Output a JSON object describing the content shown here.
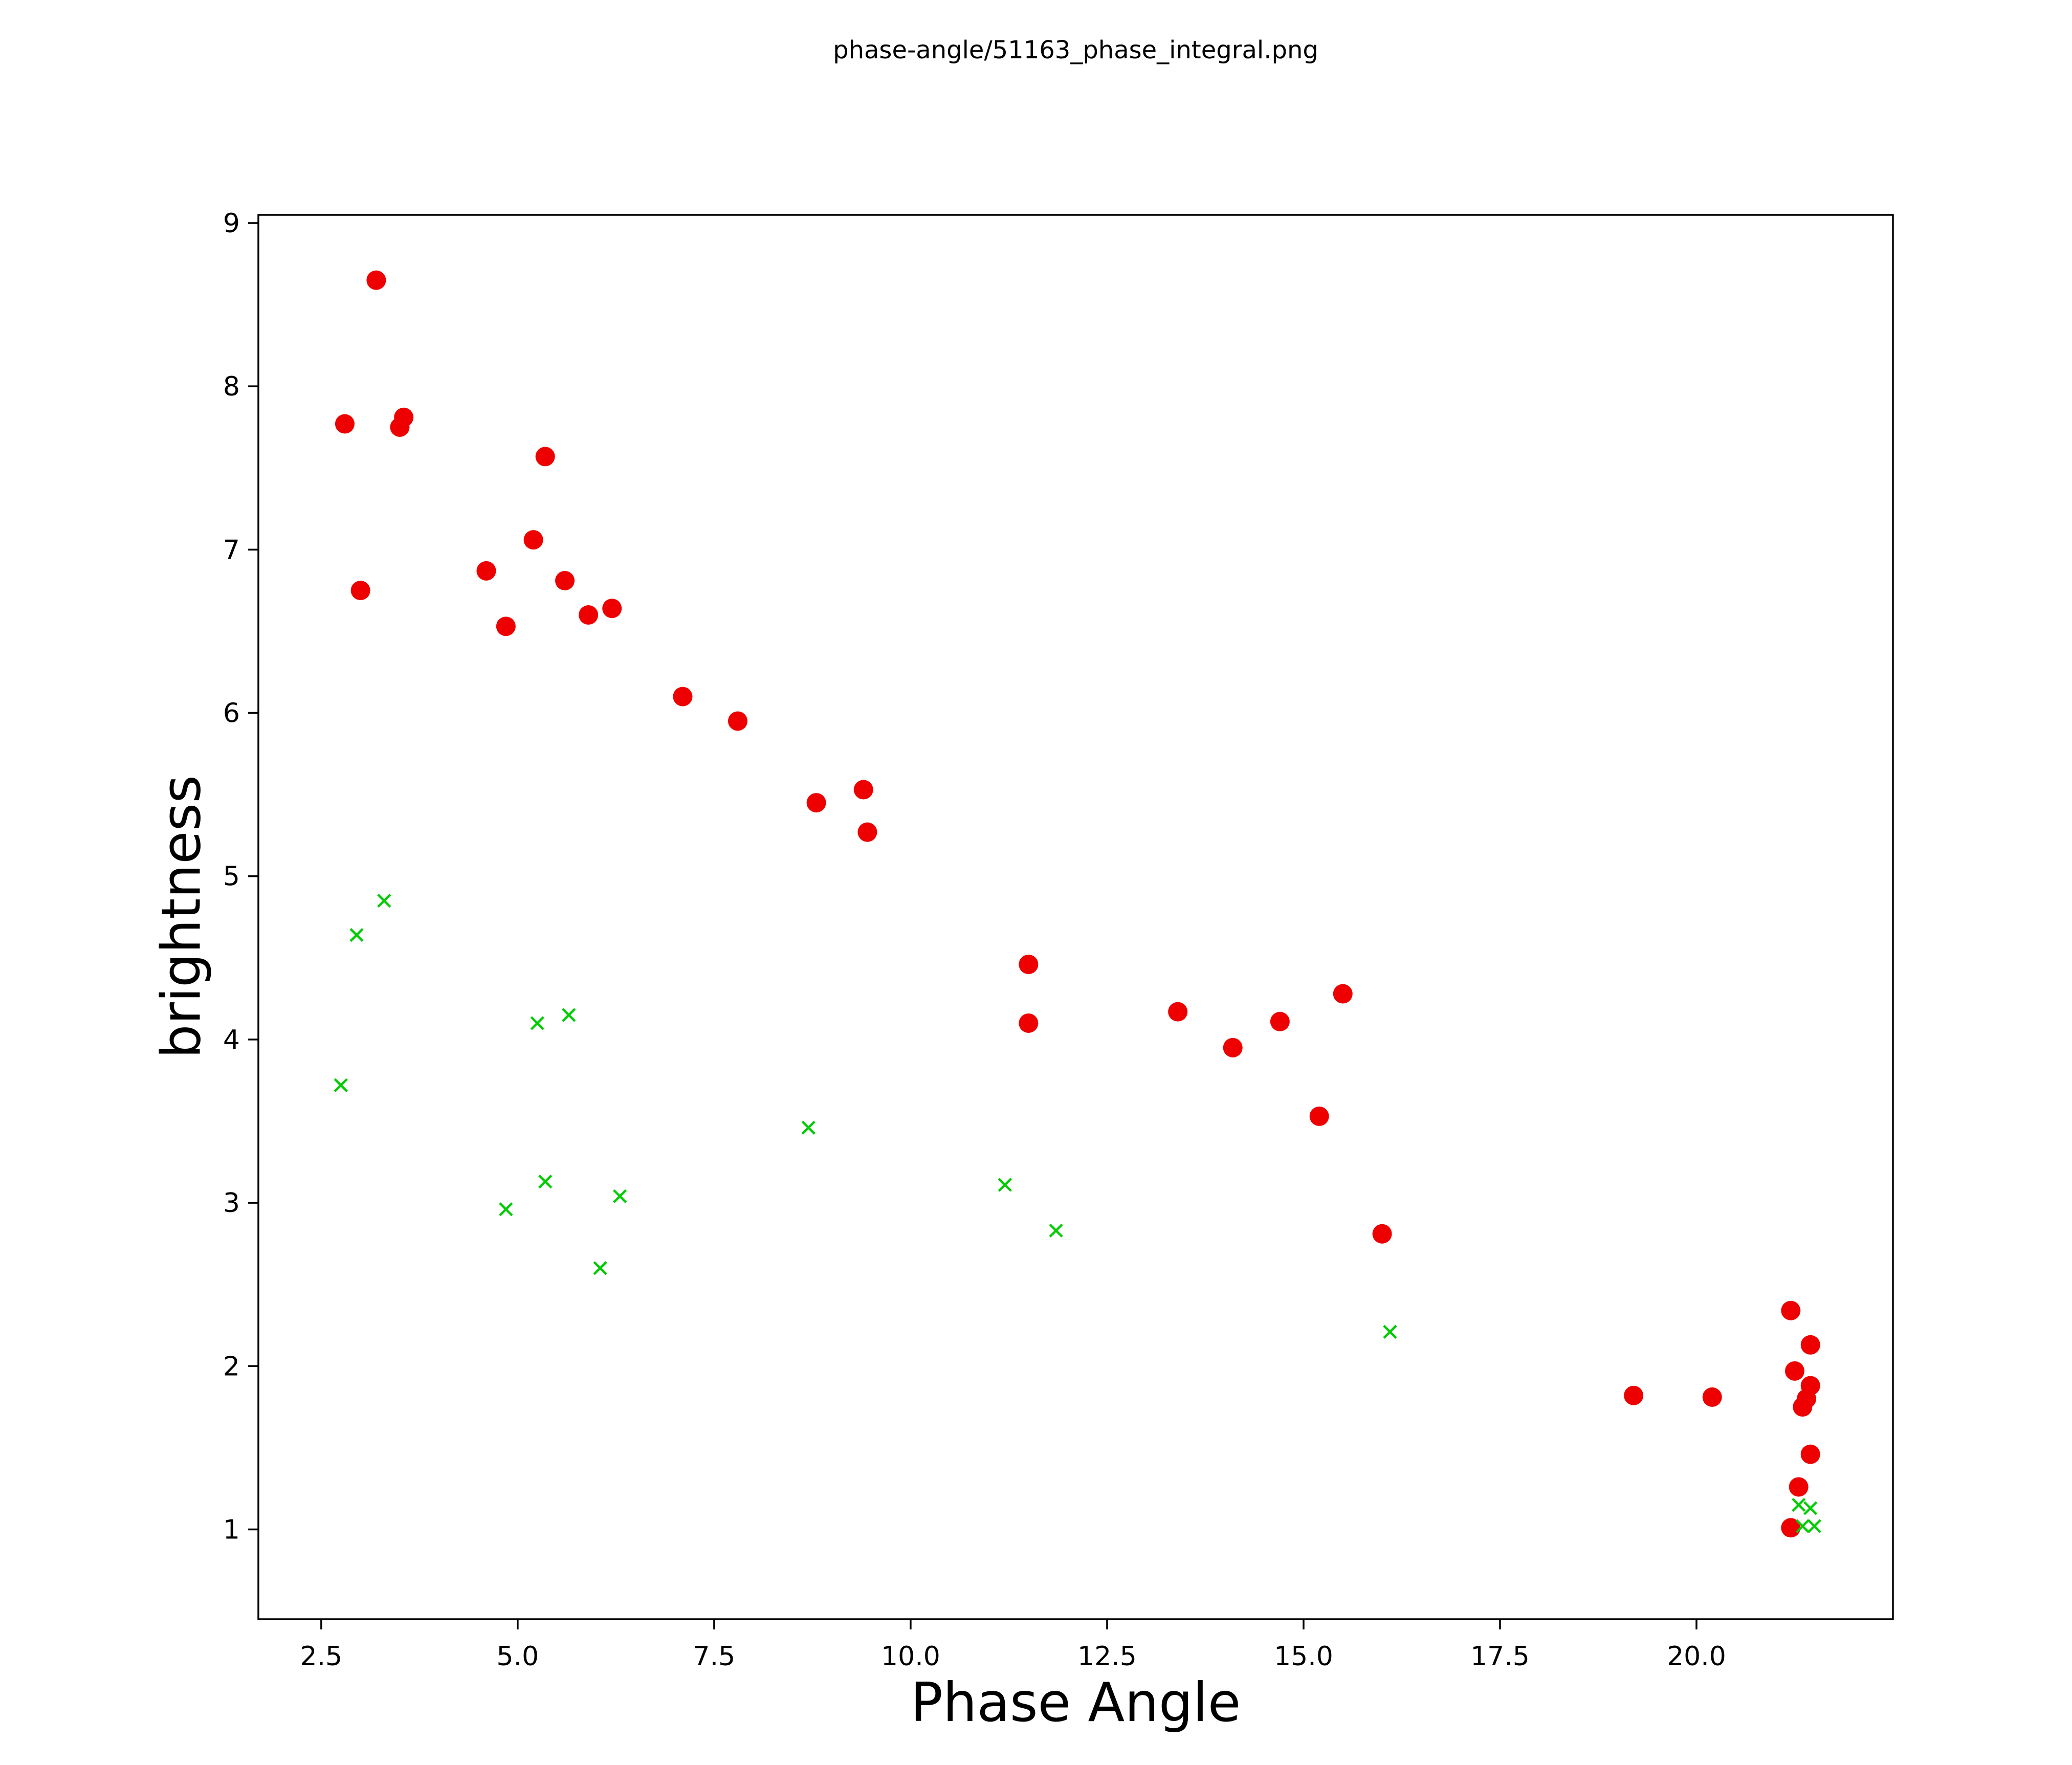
{
  "page": {
    "background": "#ffffff"
  },
  "chart_data": {
    "type": "scatter",
    "title": "phase-angle/51163_phase_integral.png",
    "xlabel": "Phase Angle",
    "ylabel": "brightness",
    "xlim": [
      1.7,
      22.5
    ],
    "ylim": [
      0.45,
      9.05
    ],
    "grid": false,
    "legend": "none",
    "xticks": [
      2.5,
      5.0,
      7.5,
      10.0,
      12.5,
      15.0,
      17.5,
      20.0
    ],
    "xtick_labels": [
      "2.5",
      "5.0",
      "7.5",
      "10.0",
      "12.5",
      "15.0",
      "17.5",
      "20.0"
    ],
    "yticks": [
      1,
      2,
      3,
      4,
      5,
      6,
      7,
      8,
      9
    ],
    "ytick_labels": [
      "1",
      "2",
      "3",
      "4",
      "5",
      "6",
      "7",
      "8",
      "9"
    ],
    "series": [
      {
        "name": "red-filled-circles",
        "marker": "circle",
        "color": "#ee0000",
        "marker_radius": 19,
        "points": [
          [
            2.8,
            7.77
          ],
          [
            3.0,
            6.75
          ],
          [
            3.2,
            8.65
          ],
          [
            3.5,
            7.75
          ],
          [
            3.55,
            7.81
          ],
          [
            4.6,
            6.87
          ],
          [
            4.85,
            6.53
          ],
          [
            5.2,
            7.06
          ],
          [
            5.35,
            7.57
          ],
          [
            5.6,
            6.81
          ],
          [
            5.9,
            6.6
          ],
          [
            6.2,
            6.64
          ],
          [
            7.1,
            6.1
          ],
          [
            7.8,
            5.95
          ],
          [
            8.8,
            5.45
          ],
          [
            9.4,
            5.53
          ],
          [
            9.45,
            5.27
          ],
          [
            11.5,
            4.46
          ],
          [
            11.5,
            4.1
          ],
          [
            13.4,
            4.17
          ],
          [
            14.1,
            3.95
          ],
          [
            14.7,
            4.11
          ],
          [
            15.2,
            3.53
          ],
          [
            15.5,
            4.28
          ],
          [
            16.0,
            2.81
          ],
          [
            19.2,
            1.82
          ],
          [
            20.2,
            1.81
          ],
          [
            21.2,
            2.34
          ],
          [
            21.25,
            1.97
          ],
          [
            21.45,
            2.13
          ],
          [
            21.45,
            1.88
          ],
          [
            21.4,
            1.8
          ],
          [
            21.35,
            1.75
          ],
          [
            21.45,
            1.46
          ],
          [
            21.3,
            1.26
          ],
          [
            21.2,
            1.01
          ]
        ]
      },
      {
        "name": "green-cross-markers",
        "marker": "x",
        "color": "#00cc00",
        "marker_halfsize": 12,
        "points": [
          [
            2.75,
            3.72
          ],
          [
            2.95,
            4.64
          ],
          [
            3.3,
            4.85
          ],
          [
            4.85,
            2.96
          ],
          [
            5.25,
            4.1
          ],
          [
            5.35,
            3.13
          ],
          [
            5.65,
            4.15
          ],
          [
            6.05,
            2.6
          ],
          [
            6.3,
            3.04
          ],
          [
            8.7,
            3.46
          ],
          [
            11.2,
            3.11
          ],
          [
            11.85,
            2.83
          ],
          [
            16.1,
            2.21
          ],
          [
            21.3,
            1.15
          ],
          [
            21.45,
            1.13
          ],
          [
            21.35,
            1.02
          ],
          [
            21.5,
            1.02
          ]
        ]
      }
    ]
  }
}
